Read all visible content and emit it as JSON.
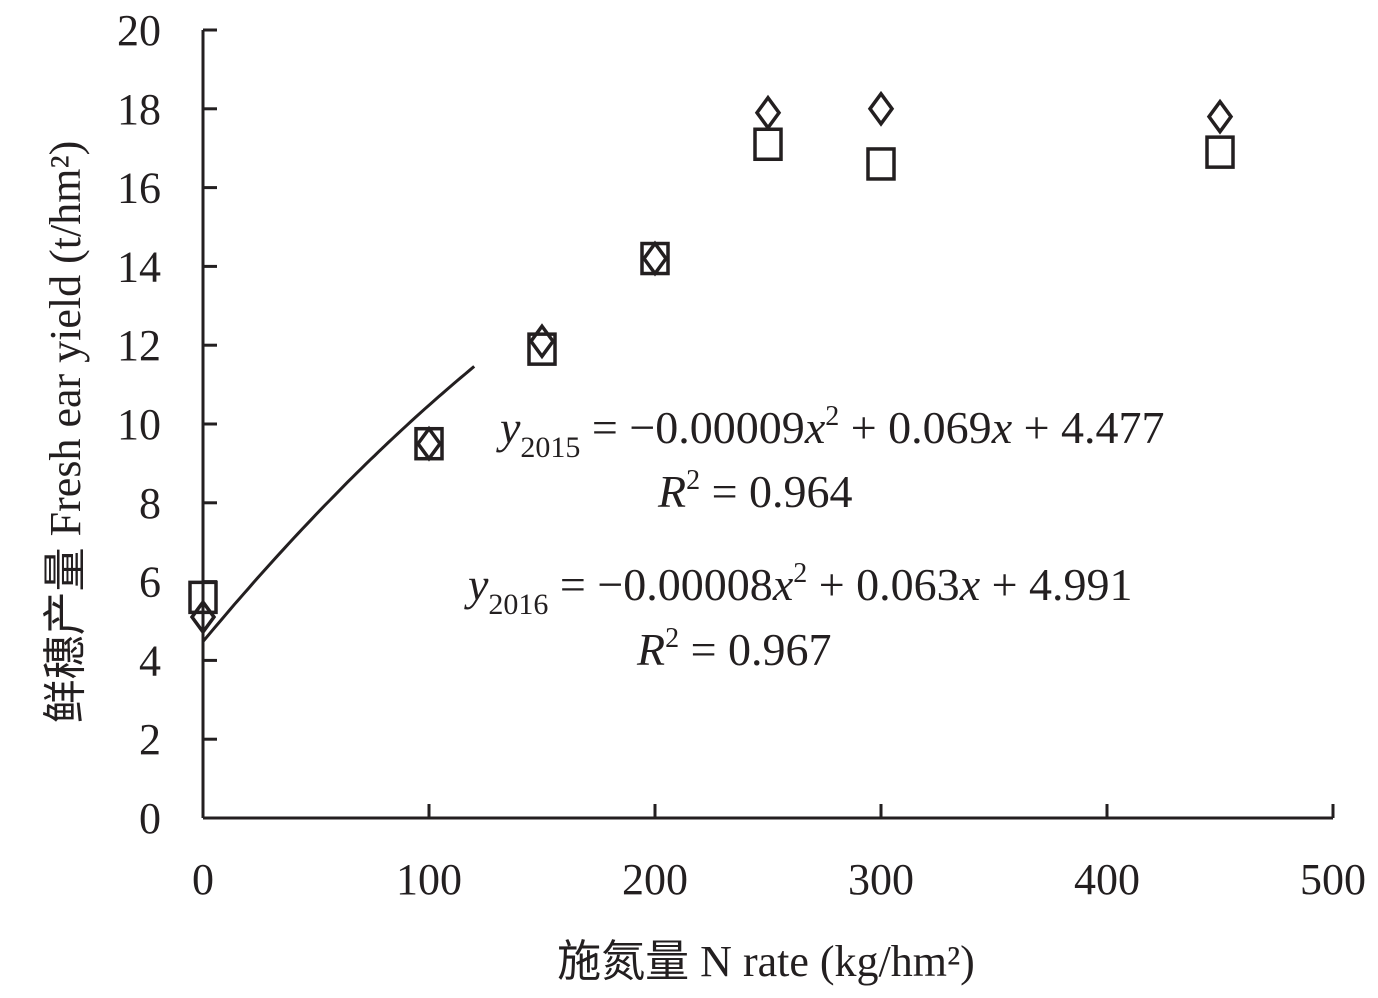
{
  "chart_data": {
    "type": "scatter",
    "xlabel": "施氮量 N rate (kg/hm²)",
    "ylabel": "鲜穗产量 Fresh ear yield (t/hm²)",
    "xlim": [
      0,
      500
    ],
    "ylim": [
      0,
      20
    ],
    "x_ticks": [
      "0",
      "100",
      "200",
      "300",
      "400",
      "500"
    ],
    "y_ticks": [
      "0",
      "2",
      "4",
      "6",
      "8",
      "10",
      "12",
      "14",
      "16",
      "18",
      "20"
    ],
    "grid": false,
    "series": [
      {
        "marker": "diamond",
        "x": [
          0,
          100,
          150,
          200,
          250,
          300,
          450
        ],
        "values": [
          5.1,
          9.5,
          12.1,
          14.2,
          17.9,
          18.0,
          17.8
        ]
      },
      {
        "marker": "square",
        "x": [
          0,
          100,
          150,
          200,
          250,
          300,
          450
        ],
        "values": [
          5.6,
          9.5,
          11.9,
          14.2,
          17.1,
          16.6,
          16.9
        ]
      }
    ],
    "trendline": {
      "x_range": [
        0,
        120
      ],
      "coefficients": [
        -9e-05,
        0.069,
        4.477
      ]
    },
    "annotations": [
      {
        "y_label": "y",
        "y_sub": "2015",
        "eq_left": " = −0.00009",
        "eq_x1": "x",
        "eq_pow": "2",
        "eq_mid": " + 0.069",
        "eq_x2": "x",
        "eq_tail": " + 4.477",
        "r_label": "R",
        "r_pow": "2",
        "r_val": " = 0.964"
      },
      {
        "y_label": "y",
        "y_sub": "2016",
        "eq_left": " = −0.00008",
        "eq_x1": "x",
        "eq_pow": "2",
        "eq_mid": " + 0.063",
        "eq_x2": "x",
        "eq_tail": " + 4.991",
        "r_label": "R",
        "r_pow": "2",
        "r_val": " = 0.967"
      }
    ]
  }
}
